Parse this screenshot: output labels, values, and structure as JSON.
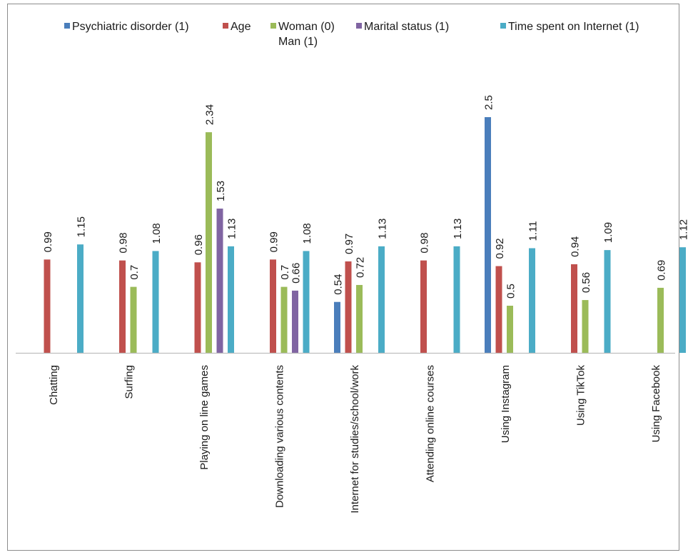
{
  "chart_data": {
    "type": "bar",
    "categories": [
      "Chatting",
      "Surfing",
      "Playing on line games",
      "Downloading various contents",
      "Internet for studies/school/work",
      "Attending online courses",
      "Using Instagram",
      "Using TikTok",
      "Using Facebook"
    ],
    "series": [
      {
        "name": "Psychiatric disorder (1)",
        "color": "#4a7ebb",
        "values": [
          null,
          null,
          null,
          null,
          0.54,
          null,
          2.5,
          null,
          null
        ]
      },
      {
        "name": "Age",
        "color": "#c0504d",
        "values": [
          0.99,
          0.98,
          0.96,
          0.99,
          0.97,
          0.98,
          0.92,
          0.94,
          null
        ]
      },
      {
        "name": "Woman (0)\nMan (1)",
        "color": "#9bbb59",
        "values": [
          null,
          0.7,
          2.34,
          0.7,
          0.72,
          null,
          0.5,
          0.56,
          0.69
        ]
      },
      {
        "name": "Marital status (1)",
        "color": "#8064a2",
        "values": [
          null,
          null,
          1.53,
          0.66,
          null,
          null,
          null,
          null,
          null
        ]
      },
      {
        "name": "Time spent on Internet (1)",
        "color": "#4bacc6",
        "values": [
          1.15,
          1.08,
          1.13,
          1.08,
          1.13,
          1.13,
          1.11,
          1.09,
          1.12
        ]
      }
    ],
    "value_labels": true,
    "legend_position": "top",
    "grid": false,
    "axis_color": "#bfbfbf"
  }
}
